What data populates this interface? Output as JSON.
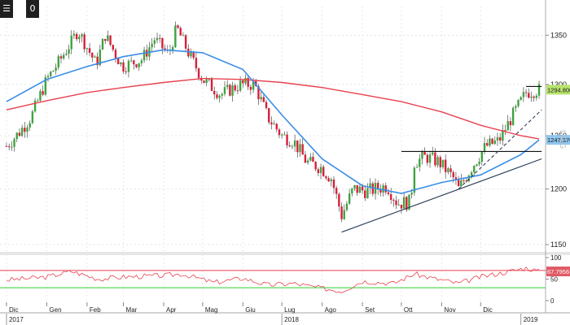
{
  "toolbar": {
    "menu_icon": "menu-bars-icon",
    "zoom_label": "0"
  },
  "side_label": "LOG",
  "colors": {
    "up": "#3fa33f",
    "down": "#d81f3a",
    "ma_fast": "#3a8ee6",
    "ma_slow": "#e8414e",
    "rsi": "#e8414e",
    "rsi_upper": "#e8414e",
    "rsi_lower": "#2fd12f",
    "price_tag": "#b9e36e",
    "ma_tag": "#8fc6f0"
  },
  "chart_data": {
    "type": "candlestick",
    "y_scale": "log",
    "ylim": [
      1145,
      1380
    ],
    "yticks": [
      1150,
      1200,
      1250,
      1300,
      1350
    ],
    "month_labels": [
      {
        "label": "Dic",
        "date": "2017-12-01"
      },
      {
        "label": "Gen",
        "date": "2018-01-01"
      },
      {
        "label": "Feb",
        "date": "2018-02-01"
      },
      {
        "label": "Mar",
        "date": "2018-03-01"
      },
      {
        "label": "Apr",
        "date": "2018-04-01"
      },
      {
        "label": "Mag",
        "date": "2018-05-01"
      },
      {
        "label": "Giu",
        "date": "2018-06-01"
      },
      {
        "label": "Lug",
        "date": "2018-07-01"
      },
      {
        "label": "Ago",
        "date": "2018-08-01"
      },
      {
        "label": "Set",
        "date": "2018-09-01"
      },
      {
        "label": "Ott",
        "date": "2018-10-01"
      },
      {
        "label": "Nov",
        "date": "2018-11-01"
      },
      {
        "label": "Dic",
        "date": "2018-12-01"
      }
    ],
    "year_labels": [
      {
        "label": "2017",
        "date": "2017-12-01"
      },
      {
        "label": "2018",
        "date": "2018-07-01"
      },
      {
        "label": "2019",
        "date": "2019-01-01"
      }
    ],
    "price_path": [
      {
        "date": "2017-12-01",
        "close": 1240
      },
      {
        "date": "2017-12-10",
        "close": 1252
      },
      {
        "date": "2017-12-20",
        "close": 1268
      },
      {
        "date": "2018-01-01",
        "close": 1305
      },
      {
        "date": "2018-01-10",
        "close": 1322
      },
      {
        "date": "2018-01-20",
        "close": 1343
      },
      {
        "date": "2018-01-25",
        "close": 1355
      },
      {
        "date": "2018-02-08",
        "close": 1320
      },
      {
        "date": "2018-02-15",
        "close": 1350
      },
      {
        "date": "2018-02-28",
        "close": 1318
      },
      {
        "date": "2018-03-15",
        "close": 1325
      },
      {
        "date": "2018-03-25",
        "close": 1346
      },
      {
        "date": "2018-04-05",
        "close": 1330
      },
      {
        "date": "2018-04-11",
        "close": 1358
      },
      {
        "date": "2018-04-20",
        "close": 1332
      },
      {
        "date": "2018-05-01",
        "close": 1305
      },
      {
        "date": "2018-05-15",
        "close": 1290
      },
      {
        "date": "2018-05-30",
        "close": 1300
      },
      {
        "date": "2018-06-10",
        "close": 1300
      },
      {
        "date": "2018-06-20",
        "close": 1268
      },
      {
        "date": "2018-07-01",
        "close": 1250
      },
      {
        "date": "2018-07-10",
        "close": 1245
      },
      {
        "date": "2018-07-20",
        "close": 1225
      },
      {
        "date": "2018-07-31",
        "close": 1220
      },
      {
        "date": "2018-08-08",
        "close": 1210
      },
      {
        "date": "2018-08-16",
        "close": 1176
      },
      {
        "date": "2018-08-25",
        "close": 1200
      },
      {
        "date": "2018-09-05",
        "close": 1198
      },
      {
        "date": "2018-09-20",
        "close": 1203
      },
      {
        "date": "2018-09-28",
        "close": 1187
      },
      {
        "date": "2018-10-08",
        "close": 1188
      },
      {
        "date": "2018-10-11",
        "close": 1225
      },
      {
        "date": "2018-10-20",
        "close": 1230
      },
      {
        "date": "2018-10-30",
        "close": 1225
      },
      {
        "date": "2018-11-10",
        "close": 1210
      },
      {
        "date": "2018-11-14",
        "close": 1200
      },
      {
        "date": "2018-11-25",
        "close": 1222
      },
      {
        "date": "2018-12-05",
        "close": 1240
      },
      {
        "date": "2018-12-15",
        "close": 1245
      },
      {
        "date": "2018-12-25",
        "close": 1268
      },
      {
        "date": "2019-01-05",
        "close": 1292
      },
      {
        "date": "2019-01-15",
        "close": 1294.8
      }
    ],
    "ma_fast": [
      {
        "date": "2017-12-01",
        "value": 1283
      },
      {
        "date": "2018-01-01",
        "value": 1305
      },
      {
        "date": "2018-02-01",
        "value": 1318
      },
      {
        "date": "2018-03-01",
        "value": 1328
      },
      {
        "date": "2018-04-01",
        "value": 1335
      },
      {
        "date": "2018-05-01",
        "value": 1332
      },
      {
        "date": "2018-06-01",
        "value": 1315
      },
      {
        "date": "2018-07-01",
        "value": 1270
      },
      {
        "date": "2018-08-01",
        "value": 1228
      },
      {
        "date": "2018-09-01",
        "value": 1203
      },
      {
        "date": "2018-10-01",
        "value": 1196
      },
      {
        "date": "2018-11-01",
        "value": 1206
      },
      {
        "date": "2018-12-01",
        "value": 1213
      },
      {
        "date": "2019-01-01",
        "value": 1232
      },
      {
        "date": "2019-01-15",
        "value": 1246
      }
    ],
    "ma_slow": [
      {
        "date": "2017-12-01",
        "value": 1275
      },
      {
        "date": "2018-01-01",
        "value": 1284
      },
      {
        "date": "2018-02-01",
        "value": 1292
      },
      {
        "date": "2018-03-01",
        "value": 1297
      },
      {
        "date": "2018-04-01",
        "value": 1302
      },
      {
        "date": "2018-05-01",
        "value": 1306
      },
      {
        "date": "2018-06-01",
        "value": 1305
      },
      {
        "date": "2018-07-01",
        "value": 1302
      },
      {
        "date": "2018-08-01",
        "value": 1297
      },
      {
        "date": "2018-09-01",
        "value": 1290
      },
      {
        "date": "2018-10-01",
        "value": 1283
      },
      {
        "date": "2018-11-01",
        "value": 1273
      },
      {
        "date": "2018-12-01",
        "value": 1260
      },
      {
        "date": "2019-01-01",
        "value": 1250
      },
      {
        "date": "2019-01-15",
        "value": 1247
      }
    ],
    "trendlines": [
      {
        "kind": "support",
        "style": "solid",
        "from": {
          "date": "2018-08-16",
          "value": 1161
        },
        "to": {
          "date": "2019-01-17",
          "value": 1228
        }
      },
      {
        "kind": "resistance",
        "style": "solid",
        "from": {
          "date": "2018-10-01",
          "value": 1235
        },
        "to": {
          "date": "2019-01-17",
          "value": 1235
        }
      },
      {
        "kind": "trend",
        "style": "dashed",
        "from": {
          "date": "2018-11-14",
          "value": 1200
        },
        "to": {
          "date": "2019-01-17",
          "value": 1275
        }
      },
      {
        "kind": "resistance",
        "style": "solid",
        "from": {
          "date": "2019-01-05",
          "value": 1298
        },
        "to": {
          "date": "2019-01-17",
          "value": 1298
        }
      }
    ],
    "last_price_tag": "1294.8000",
    "ma_tag": "1247.3762",
    "rsi": {
      "ylim": [
        0,
        100
      ],
      "yticks": [
        0,
        50,
        100
      ],
      "upper_level": 70,
      "lower_level": 30,
      "last_value_tag": "67.7956",
      "points": [
        {
          "date": "2017-12-01",
          "value": 48
        },
        {
          "date": "2018-01-01",
          "value": 55
        },
        {
          "date": "2018-01-20",
          "value": 68
        },
        {
          "date": "2018-02-10",
          "value": 50
        },
        {
          "date": "2018-03-01",
          "value": 55
        },
        {
          "date": "2018-04-01",
          "value": 58
        },
        {
          "date": "2018-04-15",
          "value": 62
        },
        {
          "date": "2018-05-10",
          "value": 42
        },
        {
          "date": "2018-06-01",
          "value": 52
        },
        {
          "date": "2018-06-20",
          "value": 36
        },
        {
          "date": "2018-07-10",
          "value": 40
        },
        {
          "date": "2018-07-25",
          "value": 32
        },
        {
          "date": "2018-08-16",
          "value": 22
        },
        {
          "date": "2018-09-01",
          "value": 45
        },
        {
          "date": "2018-09-25",
          "value": 40
        },
        {
          "date": "2018-10-11",
          "value": 62
        },
        {
          "date": "2018-10-25",
          "value": 52
        },
        {
          "date": "2018-11-14",
          "value": 40
        },
        {
          "date": "2018-12-01",
          "value": 55
        },
        {
          "date": "2018-12-20",
          "value": 66
        },
        {
          "date": "2019-01-05",
          "value": 76
        },
        {
          "date": "2019-01-15",
          "value": 68
        }
      ]
    }
  }
}
